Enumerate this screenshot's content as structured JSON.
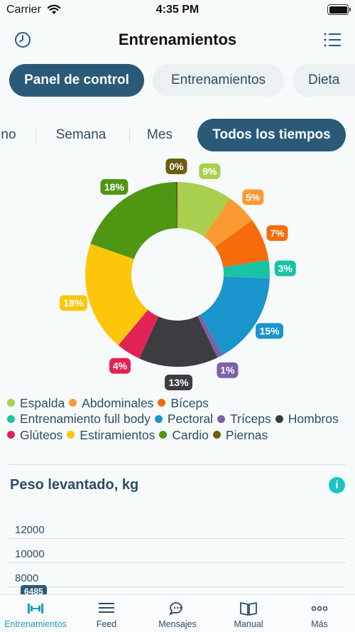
{
  "status_bar": {
    "carrier": "Carrier",
    "time": "4:35 PM"
  },
  "header": {
    "title": "Entrenamientos"
  },
  "top_tabs": [
    {
      "label": "Panel de control",
      "active": true
    },
    {
      "label": "Entrenamientos",
      "active": false
    },
    {
      "label": "Dieta",
      "active": false
    }
  ],
  "period_tabs": [
    {
      "label": "no",
      "active": false
    },
    {
      "label": "Semana",
      "active": false
    },
    {
      "label": "Mes",
      "active": false
    },
    {
      "label": "Todos los tiempos",
      "active": true
    }
  ],
  "chart_data": {
    "type": "pie",
    "slices": [
      {
        "label": "Espalda",
        "value": 9,
        "text": "9%",
        "color": "#a8cf4e"
      },
      {
        "label": "Abdominales",
        "value": 5,
        "text": "5%",
        "color": "#fb9a32"
      },
      {
        "label": "Bíceps",
        "value": 7,
        "text": "7%",
        "color": "#f76b0b"
      },
      {
        "label": "Entrenamiento full body",
        "value": 3,
        "text": "3%",
        "color": "#19c3a6"
      },
      {
        "label": "Pectoral",
        "value": 15,
        "text": "15%",
        "color": "#1a94cc"
      },
      {
        "label": "Tríceps",
        "value": 1,
        "text": "1%",
        "color": "#7a62a8"
      },
      {
        "label": "Hombros",
        "value": 13,
        "text": "13%",
        "color": "#3d3c41"
      },
      {
        "label": "Glúteos",
        "value": 4,
        "text": "4%",
        "color": "#e32256"
      },
      {
        "label": "Estiramientos",
        "value": 18,
        "text": "18%",
        "color": "#fcc70b"
      },
      {
        "label": "Cardio",
        "value": 18,
        "text": "18%",
        "color": "#4f9612"
      },
      {
        "label": "Piernas",
        "value": 0.3,
        "text": "0%",
        "color": "#6b5e10"
      }
    ]
  },
  "weight_section": {
    "title": "Peso levantado, kg",
    "info_icon": "info-icon",
    "y_ticks": [
      "12000",
      "10000",
      "8000"
    ],
    "highlight_value": "6485"
  },
  "tabbar": [
    {
      "label": "Entrenamientos",
      "icon": "dumbbell-icon",
      "active": true
    },
    {
      "label": "Feed",
      "icon": "feed-icon",
      "active": false
    },
    {
      "label": "Mensajes",
      "icon": "messages-icon",
      "active": false
    },
    {
      "label": "Manual",
      "icon": "book-icon",
      "active": false
    },
    {
      "label": "Más",
      "icon": "more-icon",
      "active": false
    }
  ]
}
